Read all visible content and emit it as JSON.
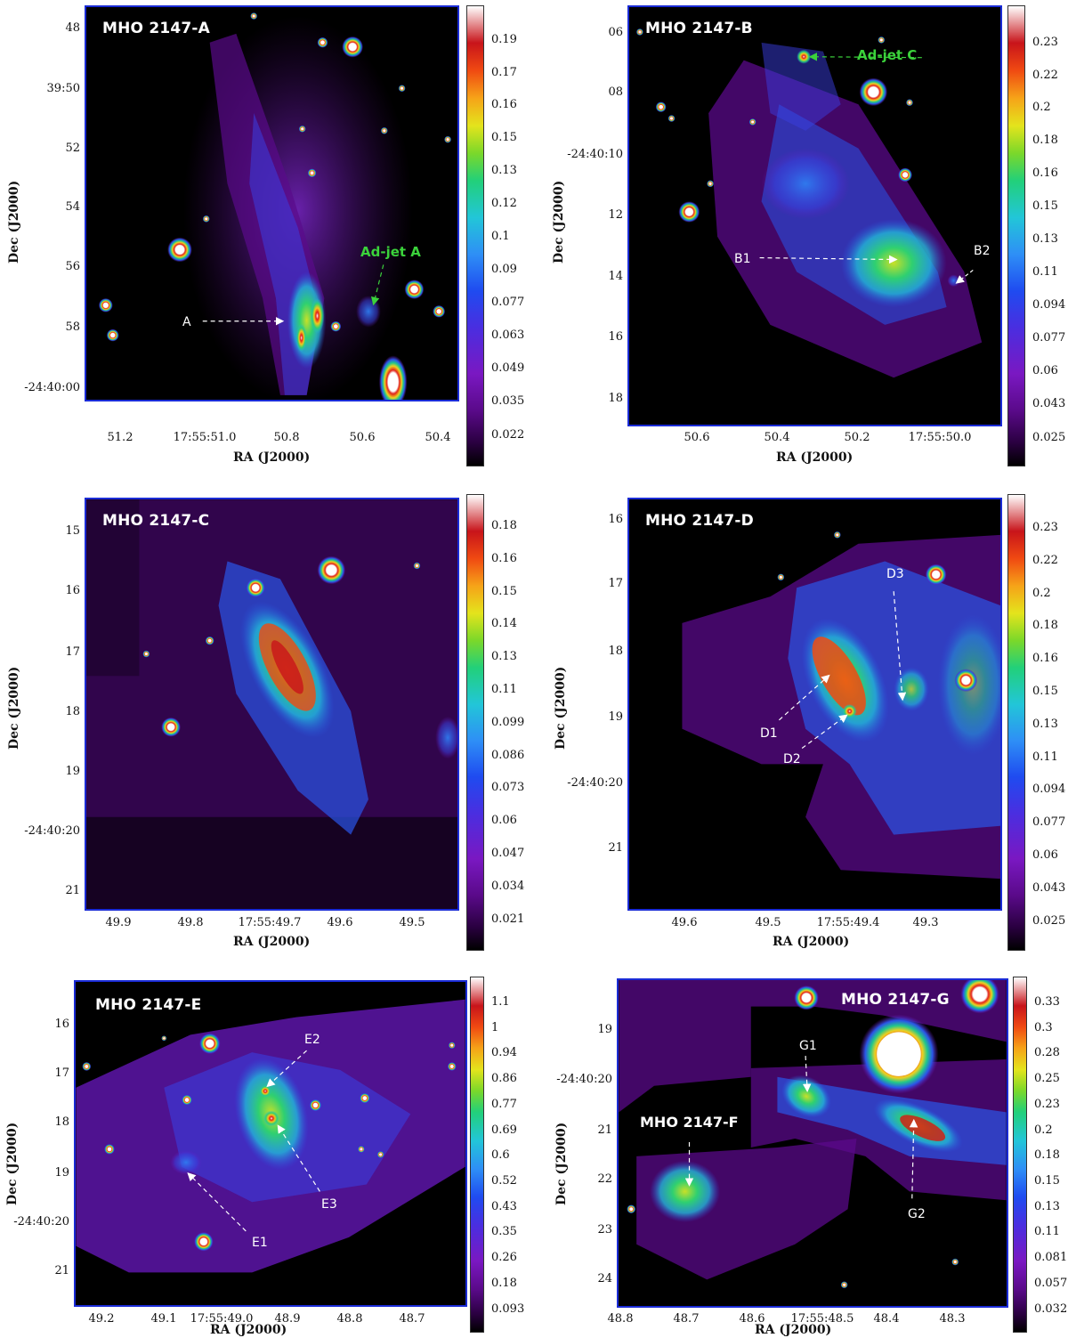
{
  "panels": {
    "A": {
      "title": "MHO 2147-A",
      "labels": {
        "a": "A",
        "adjet": "Ad-jet A"
      },
      "yticks": [
        "48",
        "39:50",
        "52",
        "54",
        "56",
        "58",
        "-24:40:00"
      ],
      "xticks": [
        "51.2",
        "17:55:51.0",
        "50.8",
        "50.6",
        "50.4"
      ],
      "cbar": [
        "0.19",
        "0.17",
        "0.16",
        "0.15",
        "0.13",
        "0.12",
        "0.1",
        "0.09",
        "0.077",
        "0.063",
        "0.049",
        "0.035",
        "0.022"
      ],
      "xlabel": "RA (J2000)",
      "ylabel": "Dec (J2000)"
    },
    "B": {
      "title": "MHO 2147-B",
      "labels": {
        "adjet": "Ad-jet C",
        "b1": "B1",
        "b2": "B2"
      },
      "yticks": [
        "06",
        "08",
        "-24:40:10",
        "12",
        "14",
        "16",
        "18"
      ],
      "xticks": [
        "50.6",
        "50.4",
        "50.2",
        "17:55:50.0"
      ],
      "cbar": [
        "0.23",
        "0.22",
        "0.2",
        "0.18",
        "0.16",
        "0.15",
        "0.13",
        "0.11",
        "0.094",
        "0.077",
        "0.06",
        "0.043",
        "0.025"
      ],
      "xlabel": "RA (J2000)",
      "ylabel": "Dec (J2000)"
    },
    "C": {
      "title": "MHO 2147-C",
      "yticks": [
        "15",
        "16",
        "17",
        "18",
        "19",
        "-24:40:20",
        "21"
      ],
      "xticks": [
        "49.9",
        "49.8",
        "17:55:49.7",
        "49.6",
        "49.5"
      ],
      "cbar": [
        "0.18",
        "0.16",
        "0.15",
        "0.14",
        "0.13",
        "0.11",
        "0.099",
        "0.086",
        "0.073",
        "0.06",
        "0.047",
        "0.034",
        "0.021"
      ],
      "xlabel": "RA (J2000)",
      "ylabel": "Dec (J2000)"
    },
    "D": {
      "title": "MHO 2147-D",
      "labels": {
        "d1": "D1",
        "d2": "D2",
        "d3": "D3"
      },
      "yticks": [
        "16",
        "17",
        "18",
        "19",
        "-24:40:20",
        "21"
      ],
      "xticks": [
        "49.6",
        "49.5",
        "17:55:49.4",
        "49.3"
      ],
      "cbar": [
        "0.23",
        "0.22",
        "0.2",
        "0.18",
        "0.16",
        "0.15",
        "0.13",
        "0.11",
        "0.094",
        "0.077",
        "0.06",
        "0.043",
        "0.025"
      ],
      "xlabel": "RA (J2000)",
      "ylabel": "Dec (J2000)"
    },
    "E": {
      "title": "MHO 2147-E",
      "labels": {
        "e1": "E1",
        "e2": "E2",
        "e3": "E3"
      },
      "yticks": [
        "16",
        "17",
        "18",
        "19",
        "-24:40:20",
        "21"
      ],
      "xticks": [
        "49.2",
        "49.1",
        "17:55:49.0",
        "48.9",
        "48.8",
        "48.7"
      ],
      "cbar": [
        "1.1",
        "1",
        "0.94",
        "0.86",
        "0.77",
        "0.69",
        "0.6",
        "0.52",
        "0.43",
        "0.35",
        "0.26",
        "0.18",
        "0.093"
      ],
      "xlabel": "RA (J2000)",
      "ylabel": "Dec (J2000)"
    },
    "G": {
      "title": "MHO 2147-G",
      "title2": "MHO 2147-F",
      "labels": {
        "g1": "G1",
        "g2": "G2"
      },
      "yticks": [
        "19",
        "-24:40:20",
        "21",
        "22",
        "23",
        "24"
      ],
      "xticks": [
        "48.8",
        "48.7",
        "48.6",
        "17:55:48.5",
        "48.4",
        "48.3"
      ],
      "cbar": [
        "0.33",
        "0.3",
        "0.28",
        "0.25",
        "0.23",
        "0.2",
        "0.18",
        "0.15",
        "0.13",
        "0.11",
        "0.081",
        "0.057",
        "0.032"
      ],
      "xlabel": "RA (J2000)",
      "ylabel": "Dec (J2000)"
    }
  }
}
